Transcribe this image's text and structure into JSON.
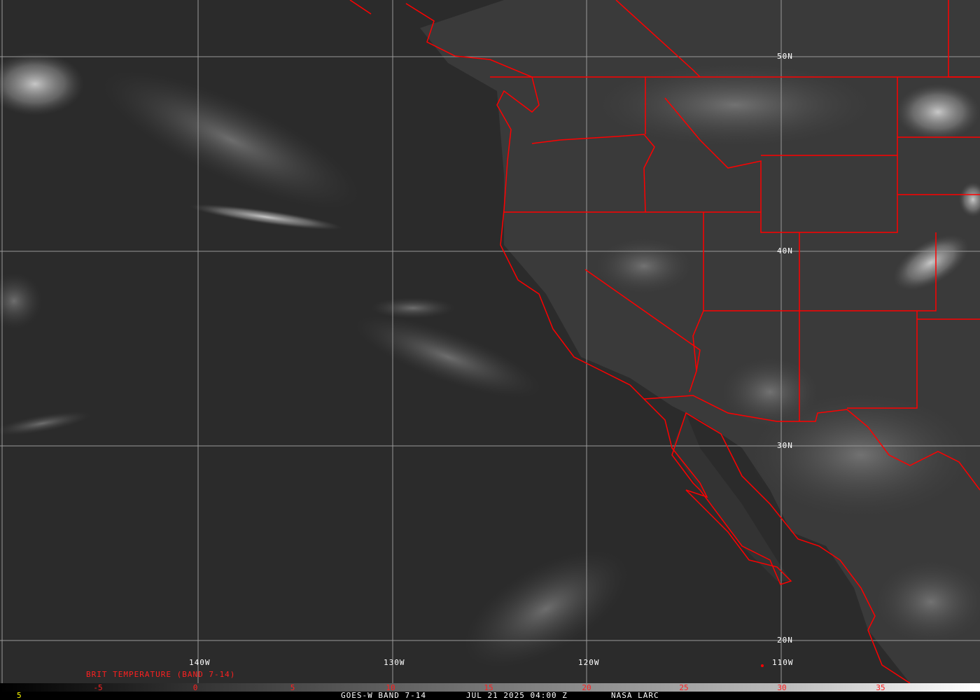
{
  "map": {
    "longitude_labels": [
      "140W",
      "130W",
      "120W",
      "110W"
    ],
    "latitude_labels": [
      "50N",
      "40N",
      "30N",
      "20N"
    ],
    "colors": {
      "borders": "#ff0000",
      "grid": "#9a9a9a",
      "legend_text": "#ff2020",
      "footer_text": "#ffffff",
      "corner_text": "#ffff00"
    }
  },
  "legend": {
    "title": "BRIT TEMPERATURE (BAND 7-14)",
    "ticks": [
      "-5",
      "0",
      "5",
      "10",
      "15",
      "20",
      "25",
      "30",
      "35"
    ],
    "colormap": "grayscale black-to-white"
  },
  "footer": {
    "corner": "5",
    "satellite": "GOES-W BAND 7-14",
    "datetime": "JUL 21 2025 04:00 Z",
    "credit": "NASA LARC"
  }
}
